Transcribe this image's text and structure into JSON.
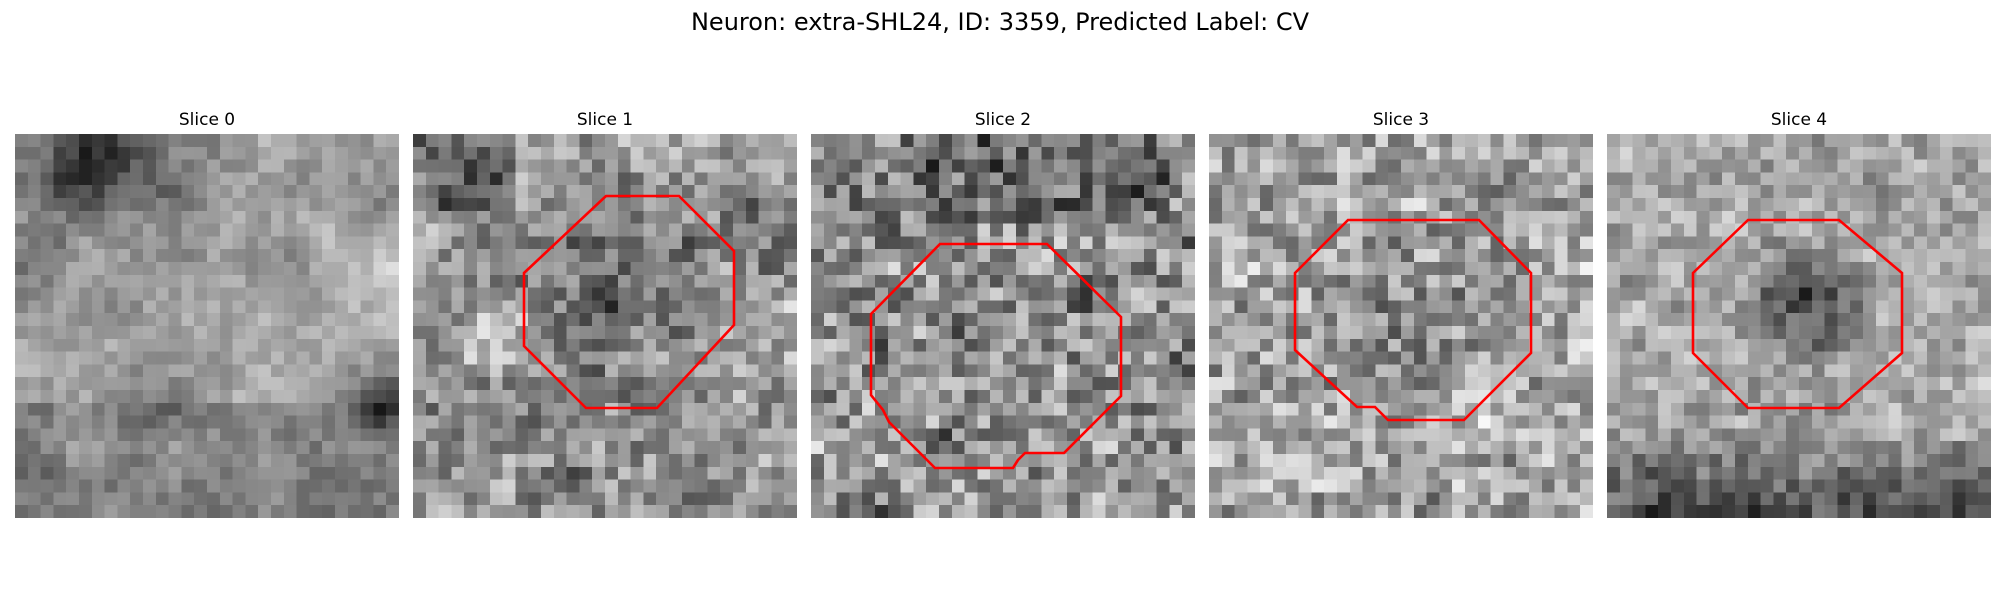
{
  "figure": {
    "title": "Neuron: extra-SHL24, ID: 3359, Predicted Label: CV"
  },
  "contour_color": "#ff0000",
  "slices": [
    {
      "title": "Slice 0",
      "has_contour": false,
      "tone": "textured-light-with-dark-top-left"
    },
    {
      "title": "Slice 1",
      "has_contour": true,
      "tone": "dark-cell-center"
    },
    {
      "title": "Slice 2",
      "has_contour": true,
      "tone": "noisy-mid"
    },
    {
      "title": "Slice 3",
      "has_contour": true,
      "tone": "noisy-light"
    },
    {
      "title": "Slice 4",
      "has_contour": true,
      "tone": "dark-center-dark-bottom"
    }
  ]
}
